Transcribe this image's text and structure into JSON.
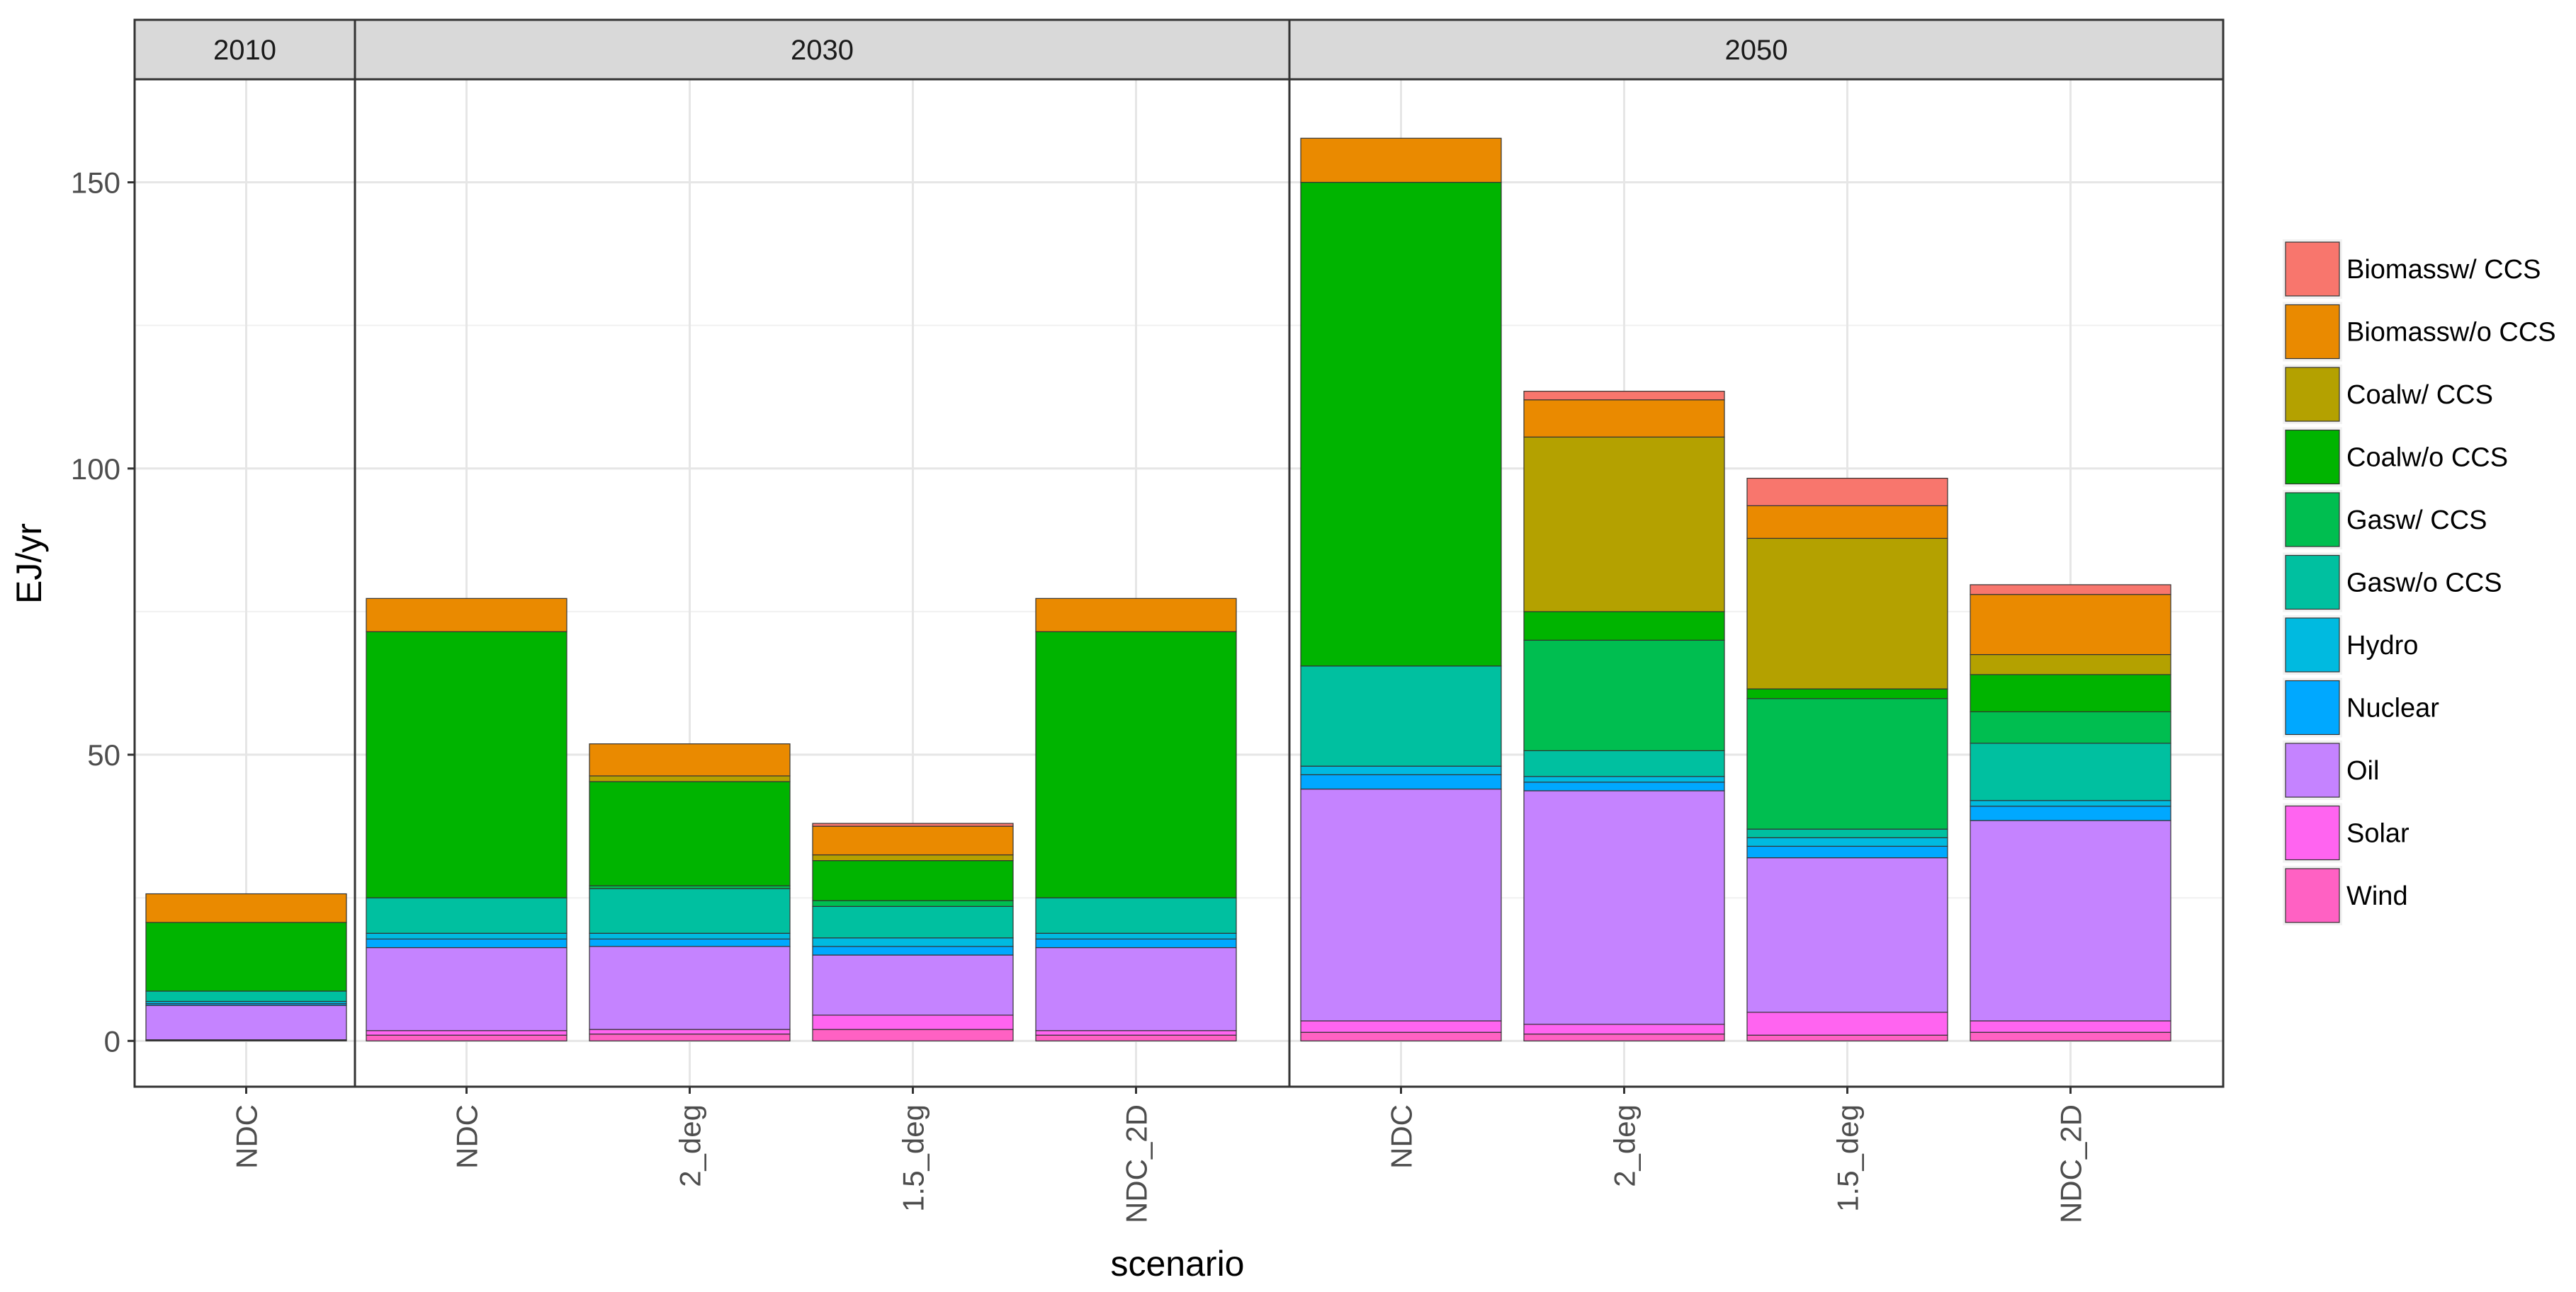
{
  "chart_data": {
    "type": "bar",
    "stacked": true,
    "facet_by": "year",
    "xlabel": "scenario",
    "ylabel": "EJ/yr",
    "ylim": [
      -8,
      168
    ],
    "yticks": [
      0,
      50,
      100,
      150
    ],
    "grid": true,
    "legend_position": "right",
    "series_order": [
      "Wind",
      "Solar",
      "Oil",
      "Nuclear",
      "Hydro",
      "Gasw/o CCS",
      "Gasw/ CCS",
      "Coalw/o CCS",
      "Coalw/ CCS",
      "Biomassw/o CCS",
      "Biomassw/ CCS"
    ],
    "legend": [
      "Biomassw/ CCS",
      "Biomassw/o CCS",
      "Coalw/ CCS",
      "Coalw/o CCS",
      "Gasw/ CCS",
      "Gasw/o CCS",
      "Hydro",
      "Nuclear",
      "Oil",
      "Solar",
      "Wind"
    ],
    "colors": {
      "Biomassw/ CCS": "#F8766D",
      "Biomassw/o CCS": "#EA8A00",
      "Coalw/ CCS": "#B4A100",
      "Coalw/o CCS": "#00B400",
      "Gasw/ CCS": "#00BE50",
      "Gasw/o CCS": "#00C0A0",
      "Hydro": "#00BAE0",
      "Nuclear": "#00A8FF",
      "Oil": "#C583FF",
      "Solar": "#FF64F0",
      "Wind": "#FF61C3"
    },
    "facets": [
      {
        "label": "2010",
        "bars": [
          {
            "scenario": "NDC",
            "values": {
              "Wind": 0.1,
              "Solar": 0.1,
              "Oil": 6.0,
              "Nuclear": 0.3,
              "Hydro": 0.4,
              "Gasw/o CCS": 1.8,
              "Gasw/ CCS": 0,
              "Coalw/o CCS": 12.0,
              "Coalw/ CCS": 0,
              "Biomassw/o CCS": 5.0,
              "Biomassw/ CCS": 0
            }
          }
        ]
      },
      {
        "label": "2030",
        "bars": [
          {
            "scenario": "NDC",
            "values": {
              "Wind": 1.0,
              "Solar": 0.8,
              "Oil": 14.5,
              "Nuclear": 1.5,
              "Hydro": 1.0,
              "Gasw/o CCS": 6.2,
              "Gasw/ CCS": 0,
              "Coalw/o CCS": 46.5,
              "Coalw/ CCS": 0,
              "Biomassw/o CCS": 5.8,
              "Biomassw/ CCS": 0
            }
          },
          {
            "scenario": "2_deg",
            "values": {
              "Wind": 1.2,
              "Solar": 0.8,
              "Oil": 14.5,
              "Nuclear": 1.3,
              "Hydro": 1.0,
              "Gasw/o CCS": 7.8,
              "Gasw/ CCS": 0.5,
              "Coalw/o CCS": 18.2,
              "Coalw/ CCS": 1.0,
              "Biomassw/o CCS": 5.6,
              "Biomassw/ CCS": 0
            }
          },
          {
            "scenario": "1.5_deg",
            "values": {
              "Wind": 2.0,
              "Solar": 2.5,
              "Oil": 10.5,
              "Nuclear": 1.5,
              "Hydro": 1.5,
              "Gasw/o CCS": 5.5,
              "Gasw/ CCS": 1.0,
              "Coalw/o CCS": 7.0,
              "Coalw/ CCS": 1.0,
              "Biomassw/o CCS": 5.0,
              "Biomassw/ CCS": 0.5
            }
          },
          {
            "scenario": "NDC_2D",
            "values": {
              "Wind": 1.0,
              "Solar": 0.8,
              "Oil": 14.5,
              "Nuclear": 1.5,
              "Hydro": 1.0,
              "Gasw/o CCS": 6.2,
              "Gasw/ CCS": 0,
              "Coalw/o CCS": 46.5,
              "Coalw/ CCS": 0,
              "Biomassw/o CCS": 5.8,
              "Biomassw/ CCS": 0
            }
          }
        ]
      },
      {
        "label": "2050",
        "bars": [
          {
            "scenario": "NDC",
            "values": {
              "Wind": 1.5,
              "Solar": 2.0,
              "Oil": 40.5,
              "Nuclear": 2.5,
              "Hydro": 1.5,
              "Gasw/o CCS": 17.5,
              "Gasw/ CCS": 0,
              "Coalw/o CCS": 84.5,
              "Coalw/ CCS": 0,
              "Biomassw/o CCS": 7.7,
              "Biomassw/ CCS": 0
            }
          },
          {
            "scenario": "2_deg",
            "values": {
              "Wind": 1.2,
              "Solar": 1.7,
              "Oil": 40.8,
              "Nuclear": 1.5,
              "Hydro": 1.0,
              "Gasw/o CCS": 4.5,
              "Gasw/ CCS": 19.3,
              "Coalw/o CCS": 5.0,
              "Coalw/ CCS": 30.5,
              "Biomassw/o CCS": 6.5,
              "Biomassw/ CCS": 1.5
            }
          },
          {
            "scenario": "1.5_deg",
            "values": {
              "Wind": 1.0,
              "Solar": 4.0,
              "Oil": 27.0,
              "Nuclear": 2.0,
              "Hydro": 1.5,
              "Gasw/o CCS": 1.5,
              "Gasw/ CCS": 22.8,
              "Coalw/o CCS": 1.7,
              "Coalw/ CCS": 26.3,
              "Biomassw/o CCS": 5.7,
              "Biomassw/ CCS": 4.8
            }
          },
          {
            "scenario": "NDC_2D",
            "values": {
              "Wind": 1.5,
              "Solar": 2.0,
              "Oil": 35.0,
              "Nuclear": 2.5,
              "Hydro": 1.0,
              "Gasw/o CCS": 10.0,
              "Gasw/ CCS": 5.5,
              "Coalw/o CCS": 6.5,
              "Coalw/ CCS": 3.5,
              "Biomassw/o CCS": 10.5,
              "Biomassw/ CCS": 1.7
            }
          }
        ]
      }
    ]
  }
}
